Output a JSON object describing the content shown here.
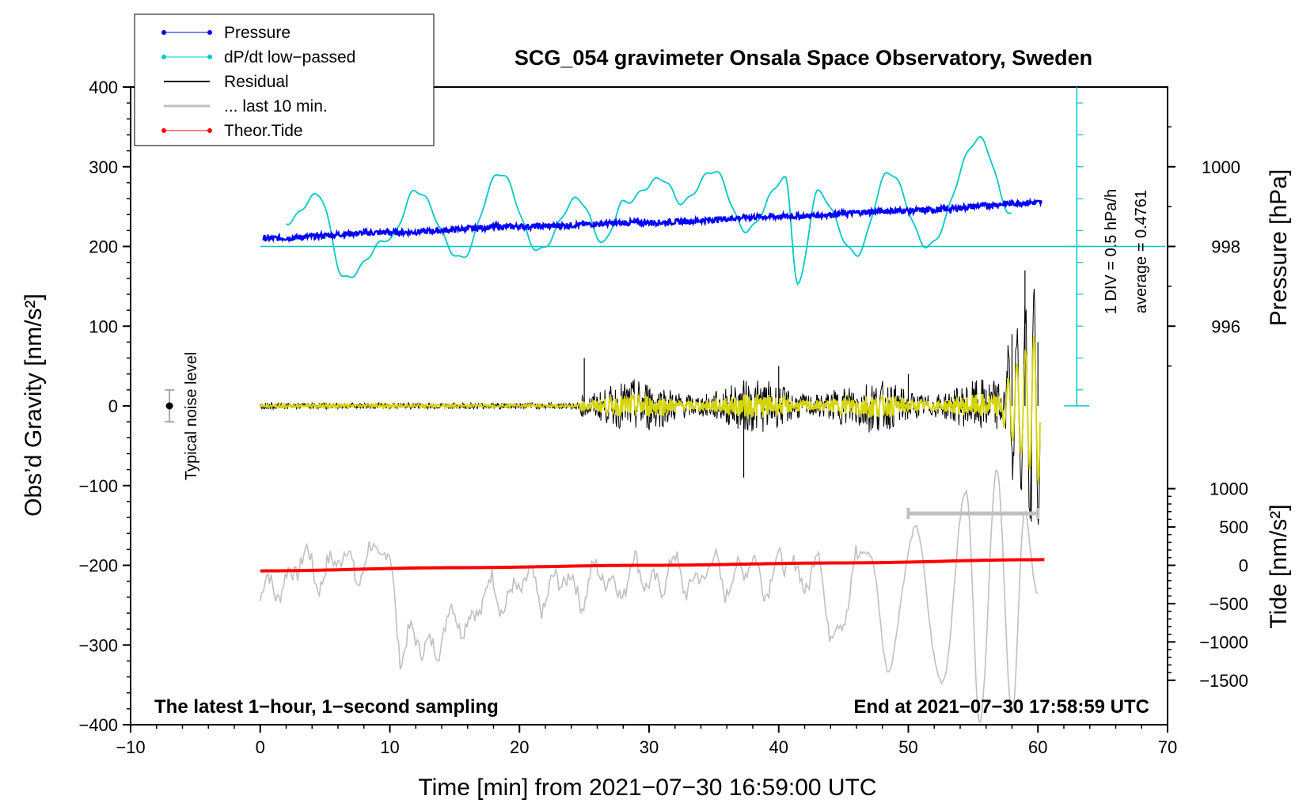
{
  "chart_data": {
    "type": "line",
    "title": "SCG_054 gravimeter Onsala Space Observatory, Sweden",
    "xlabel": "Time [min] from 2021−07−30 16:59:00 UTC",
    "ylabel_left": "Obs’d Gravity [nm/s²]",
    "ylabel_pressure": "Pressure [hPa]",
    "ylabel_tide": "Tide [nm/s²]",
    "xlim": [
      -10,
      70
    ],
    "ylim_left": [
      -400,
      400
    ],
    "x_ticks": [
      "−10",
      "0",
      "10",
      "20",
      "30",
      "40",
      "50",
      "60",
      "70"
    ],
    "y_ticks_left": [
      "400",
      "300",
      "200",
      "100",
      "0",
      "−100",
      "−200",
      "−300",
      "−400"
    ],
    "pressure_ticks": [
      "1000",
      "998",
      "996"
    ],
    "tide_ticks": [
      "1000",
      "500",
      "0",
      "−500",
      "−1000",
      "−1500"
    ],
    "legend": [
      {
        "name": "Pressure",
        "color": "#0000ff",
        "marker": "dot"
      },
      {
        "name": "dP/dt low−passed",
        "color": "#00c8c8",
        "marker": "dot"
      },
      {
        "name": "Residual",
        "color": "#000000",
        "marker": "none"
      },
      {
        "name": "... last 10 min.",
        "color": "#c0c0c0",
        "marker": "none"
      },
      {
        "name": "Theor.Tide",
        "color": "#ff0000",
        "marker": "dot"
      }
    ],
    "annotations": {
      "noise_label": "Typical noise level",
      "div_label": "1 DIV = 0.5 hPa/h",
      "average_label": "average = 0.4761",
      "bottom_left": "The latest 1−hour, 1−second sampling",
      "bottom_right": "End at 2021−07−30 17:58:59 UTC"
    },
    "noise_bar": {
      "x": -7,
      "center": 0,
      "half_range": 20
    },
    "gray_range_bar": {
      "x_start": 50,
      "x_end": 60,
      "y": -135
    },
    "series": [
      {
        "name": "Pressure",
        "unit": "hPa",
        "x": [
          0,
          10,
          20,
          30,
          40,
          50,
          60
        ],
        "values": [
          998.2,
          998.35,
          998.5,
          998.6,
          998.75,
          998.9,
          999.1
        ]
      },
      {
        "name": "dP/dt low−passed",
        "unit": "nm/s² (plot scale)",
        "x": [
          2,
          4.5,
          6.5,
          10,
          12,
          15.5,
          18.5,
          21.5,
          24.5,
          26.5,
          28,
          31,
          32.5,
          35,
          37.5,
          40.5,
          41.5,
          43,
          46,
          48.5,
          51.5,
          55.5,
          58
        ],
        "values": [
          230,
          265,
          160,
          210,
          270,
          185,
          292,
          195,
          260,
          205,
          255,
          285,
          255,
          295,
          220,
          285,
          152,
          268,
          190,
          293,
          200,
          335,
          240
        ]
      },
      {
        "name": "Residual",
        "unit": "nm/s²",
        "x": [
          0,
          10,
          20,
          24.5,
          25,
          30,
          37.3,
          40,
          50,
          56,
          58,
          59,
          59.5,
          60
        ],
        "values": [
          0,
          2,
          -1,
          0,
          60,
          20,
          -90,
          50,
          40,
          20,
          90,
          170,
          -145,
          80
        ]
      },
      {
        "name": "... last 10 min.",
        "unit": "nm/s² (plot scale)",
        "x": [
          0,
          2.5,
          10,
          11,
          20,
          30,
          43,
          44,
          47,
          48.5,
          50.5,
          52.5,
          54.5,
          55.5,
          56.8,
          58,
          59,
          60
        ],
        "values": [
          -245,
          -205,
          -192,
          -305,
          -230,
          -215,
          -205,
          -280,
          -180,
          -330,
          -150,
          -350,
          -110,
          -400,
          -80,
          -385,
          -130,
          -240
        ]
      },
      {
        "name": "Theor.Tide",
        "unit": "nm/s² (plot scale)",
        "x": [
          0,
          15,
          30,
          45,
          60
        ],
        "values": [
          -207,
          -203,
          -200,
          -197,
          -193
        ]
      }
    ]
  }
}
